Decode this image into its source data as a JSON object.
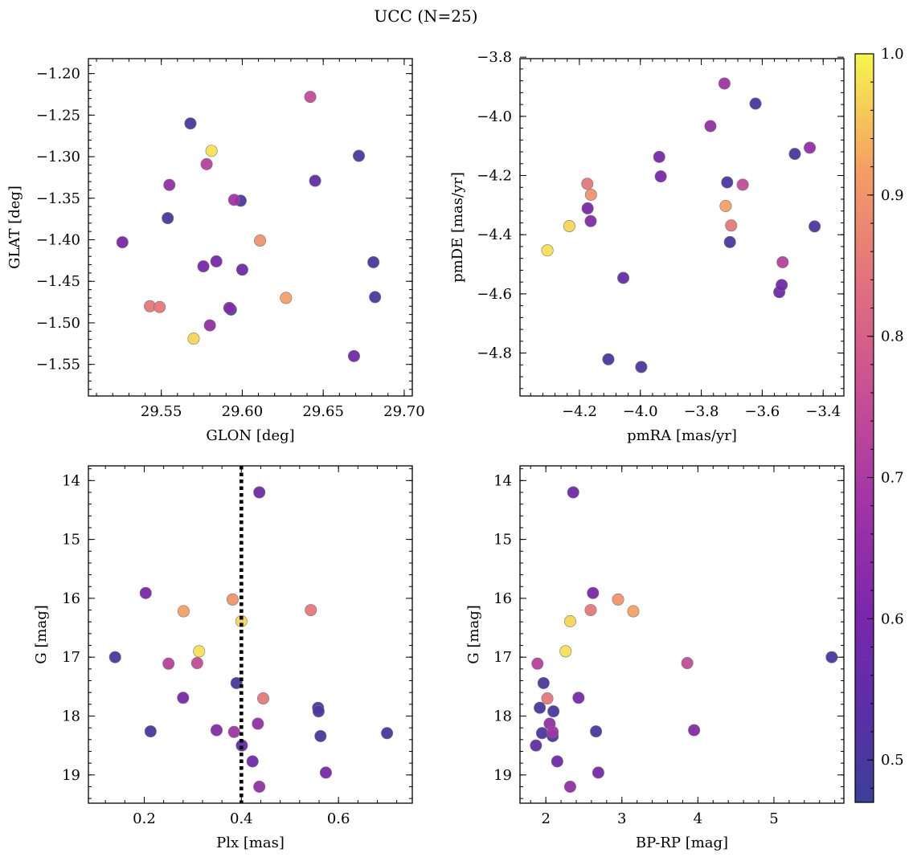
{
  "chart_data": {
    "title": "UCC (N=25)",
    "colorbar": {
      "colormap": "plasma",
      "range": [
        0.47,
        1.0
      ],
      "ticks": [
        0.5,
        0.6,
        0.7,
        0.8,
        0.9,
        1.0
      ],
      "tick_labels": [
        "0.5",
        "0.6",
        "0.7",
        "0.8",
        "0.9",
        "1.0"
      ]
    },
    "members_prob": [
      0.5,
      0.5,
      0.5,
      0.5,
      0.5,
      0.5,
      0.5,
      0.55,
      0.58,
      0.58,
      0.6,
      0.6,
      0.6,
      0.62,
      0.65,
      0.65,
      0.68,
      0.72,
      0.75,
      0.85,
      0.85,
      0.9,
      0.92,
      0.97,
      0.98
    ],
    "panels": [
      {
        "id": "glon-glat",
        "type": "scatter",
        "xlabel": "GLON [deg]",
        "ylabel": "GLAT [deg]",
        "xlim": [
          29.505,
          29.705
        ],
        "ylim": [
          -1.588,
          -1.182
        ],
        "invert_y": false,
        "xticks": [
          29.55,
          29.6,
          29.65,
          29.7
        ],
        "xtick_labels": [
          "29.55",
          "29.60",
          "29.65",
          "29.70"
        ],
        "yticks": [
          -1.55,
          -1.5,
          -1.45,
          -1.4,
          -1.35,
          -1.3,
          -1.25,
          -1.2
        ],
        "ytick_labels": [
          "−1.55",
          "−1.50",
          "−1.45",
          "−1.40",
          "−1.35",
          "−1.30",
          "−1.25",
          "−1.20"
        ],
        "x": [
          29.568,
          29.672,
          29.554,
          29.681,
          29.682,
          29.599,
          29.593,
          29.645,
          29.669,
          29.6,
          29.526,
          29.584,
          29.576,
          29.592,
          29.58,
          29.555,
          29.595,
          29.578,
          29.642,
          29.543,
          29.549,
          29.611,
          29.627,
          29.57,
          29.581
        ],
        "y": [
          -1.26,
          -1.299,
          -1.374,
          -1.427,
          -1.469,
          -1.353,
          -1.484,
          -1.329,
          -1.54,
          -1.436,
          -1.403,
          -1.426,
          -1.432,
          -1.482,
          -1.503,
          -1.334,
          -1.352,
          -1.309,
          -1.228,
          -1.48,
          -1.481,
          -1.401,
          -1.47,
          -1.519,
          -1.293
        ]
      },
      {
        "id": "pm",
        "type": "scatter",
        "xlabel": "pmRA [mas/yr]",
        "ylabel": "pmDE [mas/yr]",
        "xlim": [
          -4.395,
          -3.332
        ],
        "ylim": [
          -4.945,
          -3.805
        ],
        "invert_y": false,
        "xticks": [
          -4.2,
          -4.0,
          -3.8,
          -3.6,
          -3.4
        ],
        "xtick_labels": [
          "−4.2",
          "−4.0",
          "−3.8",
          "−3.6",
          "−3.4"
        ],
        "yticks": [
          -4.8,
          -4.6,
          -4.4,
          -4.2,
          -4.0,
          -3.8
        ],
        "ytick_labels": [
          "−4.8",
          "−4.6",
          "−4.4",
          "−4.2",
          "−4.0",
          "−3.8"
        ],
        "x": [
          -3.622,
          -3.715,
          -4.105,
          -3.706,
          -3.493,
          -3.428,
          -3.997,
          -4.056,
          -3.544,
          -3.536,
          -3.933,
          -4.173,
          -3.938,
          -4.163,
          -3.444,
          -3.77,
          -3.724,
          -3.533,
          -3.664,
          -4.174,
          -3.702,
          -4.162,
          -3.72,
          -4.233,
          -4.305
        ],
        "y": [
          -3.957,
          -4.223,
          -4.821,
          -4.425,
          -4.127,
          -4.372,
          -4.847,
          -4.546,
          -4.594,
          -4.57,
          -4.203,
          -4.311,
          -4.137,
          -4.354,
          -4.106,
          -4.033,
          -3.889,
          -4.493,
          -4.231,
          -4.228,
          -4.369,
          -4.265,
          -4.303,
          -4.371,
          -4.453
        ]
      },
      {
        "id": "plx-g",
        "type": "scatter",
        "xlabel": "Plx [mas]",
        "ylabel": "G [mag]",
        "xlim": [
          0.085,
          0.752
        ],
        "ylim": [
          13.75,
          19.48
        ],
        "invert_y": true,
        "xticks": [
          0.2,
          0.4,
          0.6
        ],
        "xtick_labels": [
          "0.2",
          "0.4",
          "0.6"
        ],
        "yticks": [
          14,
          15,
          16,
          17,
          18,
          19
        ],
        "ytick_labels": [
          "14",
          "15",
          "16",
          "17",
          "18",
          "19"
        ],
        "vline": {
          "x": 0.4,
          "style": "dotted"
        },
        "x": [
          0.14,
          0.39,
          0.558,
          0.559,
          0.563,
          0.7,
          0.213,
          0.401,
          0.423,
          0.437,
          0.574,
          0.203,
          0.28,
          0.349,
          0.434,
          0.437,
          0.385,
          0.25,
          0.309,
          0.543,
          0.445,
          0.382,
          0.281,
          0.4,
          0.313
        ],
        "y": [
          17.0,
          17.44,
          17.86,
          17.92,
          18.34,
          18.29,
          18.26,
          18.5,
          18.77,
          14.2,
          18.96,
          15.91,
          17.69,
          18.24,
          18.13,
          19.2,
          18.27,
          17.11,
          17.1,
          16.2,
          17.7,
          16.02,
          16.22,
          16.39,
          16.9
        ]
      },
      {
        "id": "cmd",
        "type": "scatter",
        "xlabel": "BP-RP [mag]",
        "ylabel": "G [mag]",
        "xlim": [
          1.66,
          5.92
        ],
        "ylim": [
          13.75,
          19.48
        ],
        "invert_y": true,
        "xticks": [
          2,
          3,
          4,
          5
        ],
        "xtick_labels": [
          "2",
          "3",
          "4",
          "5"
        ],
        "yticks": [
          14,
          15,
          16,
          17,
          18,
          19
        ],
        "ytick_labels": [
          "14",
          "15",
          "16",
          "17",
          "18",
          "19"
        ],
        "x": [
          5.76,
          1.97,
          2.1,
          1.92,
          2.09,
          1.95,
          2.66,
          1.87,
          2.15,
          2.36,
          2.69,
          2.62,
          2.43,
          3.95,
          2.05,
          2.32,
          2.09,
          1.89,
          3.86,
          2.59,
          2.02,
          2.95,
          3.15,
          2.32,
          2.26
        ],
        "y": [
          17.0,
          17.44,
          17.92,
          17.86,
          18.34,
          18.29,
          18.26,
          18.5,
          18.77,
          14.2,
          18.96,
          15.91,
          17.69,
          18.24,
          18.13,
          19.2,
          18.27,
          17.11,
          17.1,
          16.2,
          17.7,
          16.02,
          16.22,
          16.39,
          16.9
        ]
      }
    ]
  }
}
